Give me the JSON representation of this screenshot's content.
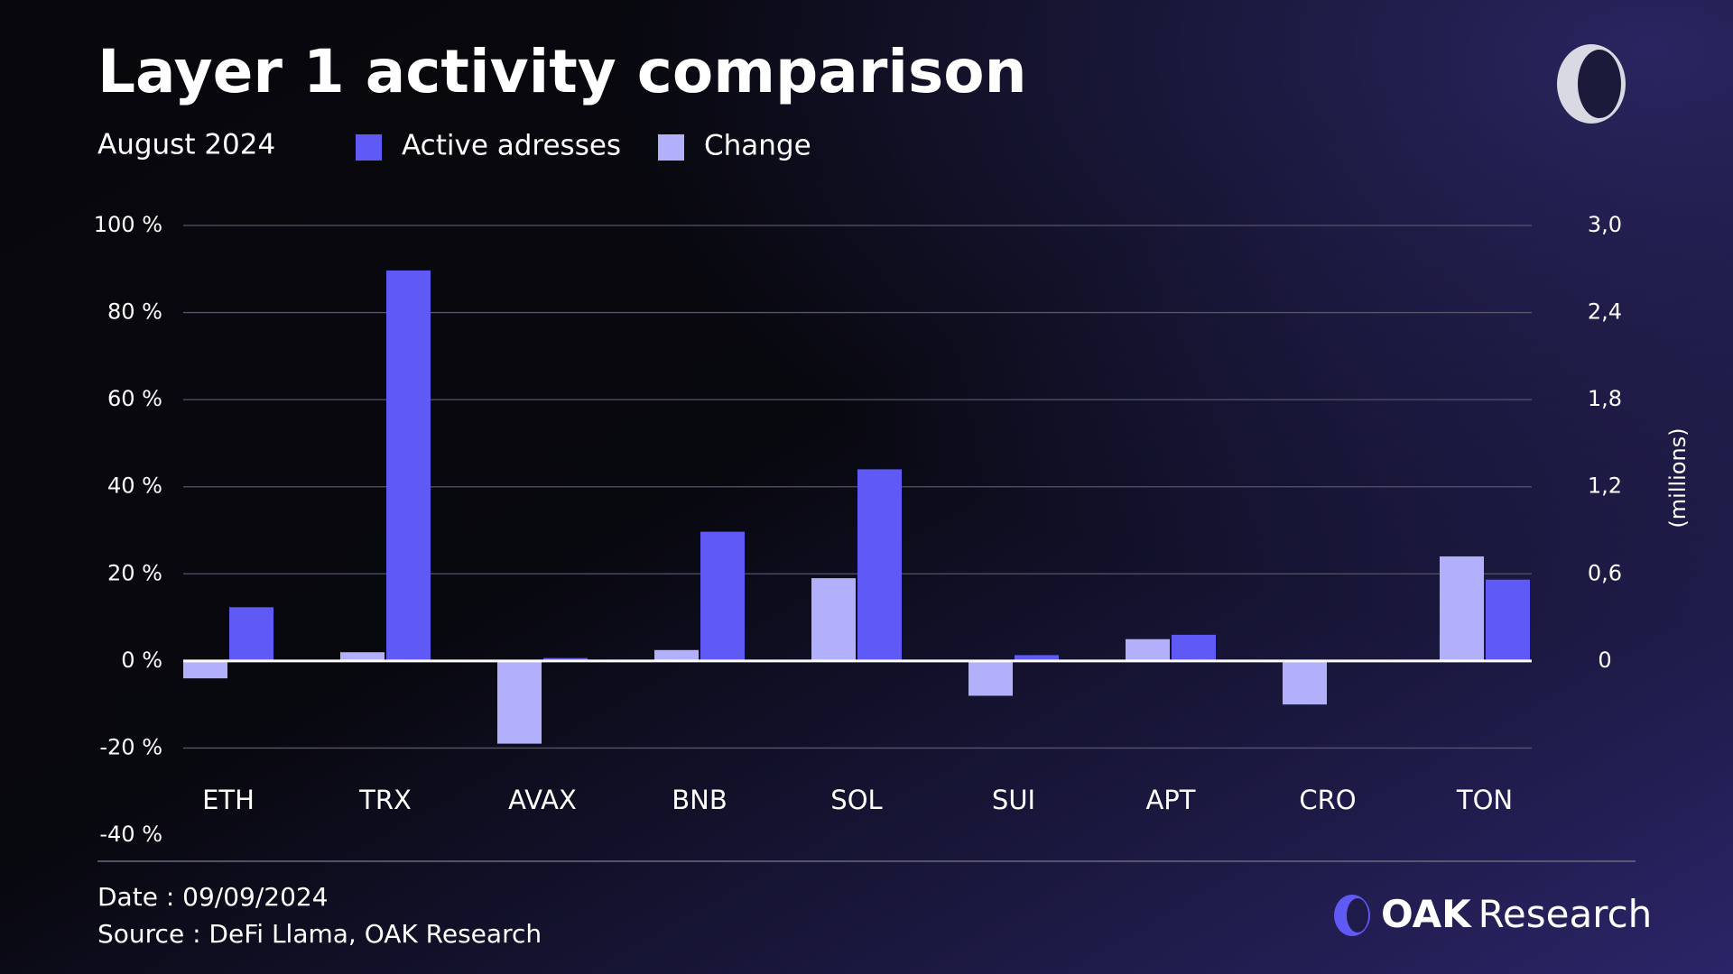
{
  "chart_data": {
    "type": "bar",
    "title": "Layer 1 activity comparison",
    "subtitle": "August 2024",
    "y2label": "(millions)",
    "categories": [
      "ETH",
      "TRX",
      "AVAX",
      "BNB",
      "SOL",
      "SUI",
      "APT",
      "CRO",
      "TON"
    ],
    "series": [
      {
        "name": "Active adresses",
        "color": "#5f5af5",
        "axis": "y2",
        "values": [
          0.37,
          2.69,
          0.02,
          0.89,
          1.32,
          0.04,
          0.18,
          0,
          0.56
        ]
      },
      {
        "name": "Change",
        "color": "#b3b0fb",
        "axis": "y",
        "values": [
          -4,
          2,
          -19,
          2.5,
          19,
          -8,
          5,
          -10,
          24
        ]
      }
    ],
    "ylim": [
      -40,
      100
    ],
    "yticks": [
      {
        "value": 100,
        "label": "100 %"
      },
      {
        "value": 80,
        "label": "80 %"
      },
      {
        "value": 60,
        "label": "60 %"
      },
      {
        "value": 40,
        "label": "40 %"
      },
      {
        "value": 20,
        "label": "20 %"
      },
      {
        "value": 0,
        "label": "0 %"
      },
      {
        "value": -20,
        "label": "-20 %"
      },
      {
        "value": -40,
        "label": "-40 %"
      }
    ],
    "y2lim": [
      -1.2,
      3
    ],
    "y2ticks": [
      {
        "value": 3,
        "label": "3,0"
      },
      {
        "value": 2.4,
        "label": "2,4"
      },
      {
        "value": 1.8,
        "label": "1,8"
      },
      {
        "value": 1.2,
        "label": "1,2"
      },
      {
        "value": 0.6,
        "label": "0,6"
      },
      0
    ],
    "grid": true,
    "date": "Date : 09/09/2024",
    "source": "Source : DeFi Llama, OAK Research",
    "brand": [
      "OAK",
      "Research"
    ]
  }
}
